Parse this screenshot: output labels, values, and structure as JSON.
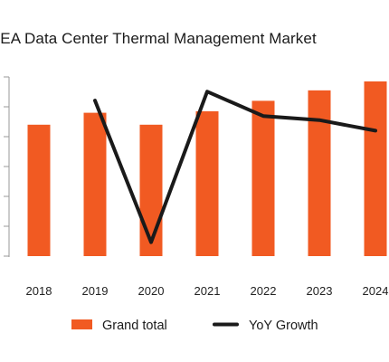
{
  "chart_data": {
    "type": "bar",
    "title": "MEA Data Center Thermal Management Market",
    "categories": [
      "2018",
      "2019",
      "2020",
      "2021",
      "2022",
      "2023",
      "2024"
    ],
    "series": [
      {
        "name": "Grand total",
        "type": "bar",
        "color": "#F15A22",
        "values": [
          44,
          48,
          44,
          48.5,
          52,
          55.5,
          58.5
        ]
      },
      {
        "name": "YoY Growth",
        "type": "line",
        "color": "#1a1a1a",
        "values": [
          null,
          9.1,
          -8.3,
          10.2,
          7.2,
          6.7,
          5.4
        ]
      }
    ],
    "ylim_left": [
      0,
      60
    ],
    "ylim_right": [
      -10,
      12
    ],
    "grid": false,
    "legend": "bottom"
  }
}
